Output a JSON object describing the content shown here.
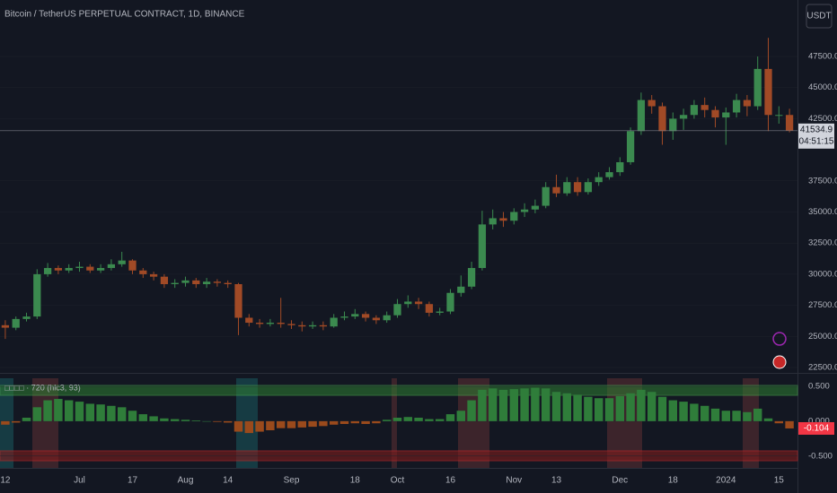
{
  "chart_data": [
    {
      "type": "candlestick",
      "title": "Bitcoin / TetherUS PERPETUAL CONTRACT, 1D, BINANCE",
      "currency": "USDT",
      "countdown": "04:51:15",
      "up_color": "#3b8a4f",
      "down_color": "#a14a26",
      "open": [
        25900,
        25700,
        26400,
        26600,
        30000,
        30500,
        30300,
        30500,
        30600,
        30300,
        30500,
        30800,
        31100,
        30300,
        30000,
        29800,
        29200,
        29300,
        29500,
        29200,
        29400,
        29300,
        29200,
        26500,
        26100,
        26000,
        26100,
        26000,
        25900,
        25800,
        25900,
        25800,
        26500,
        26600,
        26800,
        26500,
        26300,
        26700,
        27600,
        27800,
        27600,
        26900,
        27000,
        28500,
        29000,
        30500,
        34000,
        34500,
        34300,
        35000,
        35200,
        35500,
        37000,
        36500,
        37400,
        36600,
        37400,
        37800,
        38200,
        39000,
        41500,
        44000,
        43500,
        41500,
        42500,
        42800,
        43600,
        43200,
        42600,
        43000,
        44000,
        43500,
        46500,
        42800,
        42800
      ],
      "high": [
        26300,
        26600,
        26900,
        30400,
        30900,
        30700,
        30800,
        31000,
        30800,
        30800,
        31200,
        31800,
        31200,
        30500,
        30200,
        30000,
        29600,
        29800,
        29700,
        29700,
        29600,
        29500,
        29300,
        26800,
        26400,
        26400,
        28100,
        26300,
        26200,
        26200,
        26200,
        26800,
        27000,
        27200,
        27000,
        26700,
        27000,
        28000,
        28300,
        28100,
        27800,
        27300,
        28800,
        29900,
        31000,
        35100,
        35200,
        35000,
        35300,
        35700,
        36000,
        37400,
        38000,
        37800,
        37800,
        37700,
        38200,
        38600,
        39400,
        41800,
        44600,
        44400,
        43800,
        43000,
        43300,
        44000,
        44200,
        43500,
        43400,
        44500,
        44400,
        47500,
        49000,
        43500,
        43300
      ],
      "low": [
        24800,
        25500,
        26200,
        26400,
        29800,
        30000,
        30100,
        30200,
        30100,
        30100,
        30300,
        30600,
        30000,
        29700,
        29500,
        28900,
        28900,
        29000,
        28900,
        28900,
        29000,
        28900,
        25100,
        25800,
        25700,
        25800,
        25700,
        25600,
        25400,
        25600,
        25500,
        25700,
        26300,
        26400,
        26200,
        26000,
        26100,
        26500,
        27300,
        27200,
        26600,
        26700,
        26800,
        28200,
        28800,
        30300,
        33600,
        33800,
        34000,
        34600,
        34900,
        35300,
        36200,
        36300,
        36300,
        36400,
        37100,
        37600,
        37900,
        38800,
        41200,
        42900,
        40400,
        40800,
        41600,
        42500,
        42600,
        41800,
        40400,
        42600,
        42700,
        43200,
        41500,
        42100,
        41400
      ],
      "close": [
        25700,
        26400,
        26600,
        30000,
        30500,
        30300,
        30500,
        30600,
        30300,
        30500,
        30800,
        31100,
        30300,
        30000,
        29800,
        29200,
        29300,
        29500,
        29200,
        29400,
        29300,
        29200,
        26500,
        26100,
        26000,
        26100,
        26000,
        25900,
        25800,
        25900,
        25800,
        26500,
        26600,
        26800,
        26500,
        26300,
        26700,
        27600,
        27800,
        27600,
        26900,
        27000,
        28500,
        29000,
        30500,
        34000,
        34500,
        34300,
        35000,
        35200,
        35500,
        37000,
        36500,
        37400,
        36600,
        37400,
        37800,
        38200,
        39000,
        41500,
        44000,
        43500,
        41500,
        42500,
        42800,
        43600,
        43200,
        42600,
        43000,
        44000,
        43500,
        46500,
        42800,
        42800,
        41534.9
      ],
      "ylim": [
        22140,
        52040
      ],
      "yticks": [
        {
          "value": 22500,
          "label": "22500.0"
        },
        {
          "value": 25000,
          "label": "25000.0"
        },
        {
          "value": 27500,
          "label": "27500.0"
        },
        {
          "value": 30000,
          "label": "30000.0"
        },
        {
          "value": 32500,
          "label": "32500.0"
        },
        {
          "value": 35000,
          "label": "35000.0"
        },
        {
          "value": 37500,
          "label": "37500.0"
        },
        {
          "value": 42500,
          "label": "42500.0"
        },
        {
          "value": 45000,
          "label": "45000.0"
        },
        {
          "value": 47500,
          "label": "47500.0"
        }
      ]
    },
    {
      "type": "bar",
      "title": "□□□□ · 720 (hlc3, 93)",
      "up_color": "#2f7d3a",
      "down_color": "#9a4a1c",
      "categories": [
        "12",
        null,
        null,
        null,
        null,
        null,
        null,
        "Jul",
        null,
        null,
        null,
        null,
        "17",
        null,
        null,
        null,
        null,
        "Aug",
        null,
        null,
        null,
        "14",
        null,
        null,
        null,
        null,
        null,
        "Sep",
        null,
        null,
        null,
        null,
        null,
        "18",
        null,
        null,
        null,
        "Oct",
        null,
        null,
        null,
        null,
        "16",
        null,
        null,
        null,
        null,
        null,
        "Nov",
        null,
        null,
        null,
        "13",
        null,
        null,
        null,
        null,
        null,
        "Dec",
        null,
        null,
        null,
        null,
        "18",
        null,
        null,
        null,
        null,
        "2024",
        null,
        null,
        null,
        null,
        "15",
        null
      ],
      "values": [
        -0.05,
        -0.02,
        0.05,
        0.2,
        0.3,
        0.32,
        0.3,
        0.28,
        0.25,
        0.24,
        0.22,
        0.2,
        0.15,
        0.1,
        0.07,
        0.04,
        0.03,
        0.02,
        0.01,
        0.0,
        -0.01,
        -0.02,
        -0.15,
        -0.17,
        -0.15,
        -0.13,
        -0.1,
        -0.1,
        -0.09,
        -0.08,
        -0.07,
        -0.05,
        -0.04,
        -0.03,
        -0.04,
        -0.03,
        0.02,
        0.05,
        0.06,
        0.05,
        0.03,
        0.03,
        0.1,
        0.15,
        0.3,
        0.45,
        0.47,
        0.45,
        0.46,
        0.47,
        0.48,
        0.47,
        0.42,
        0.4,
        0.38,
        0.35,
        0.33,
        0.33,
        0.36,
        0.4,
        0.45,
        0.42,
        0.35,
        0.3,
        0.28,
        0.25,
        0.22,
        0.18,
        0.15,
        0.15,
        0.13,
        0.18,
        0.04,
        -0.03,
        -0.104
      ],
      "ylim": [
        -0.67,
        0.68
      ],
      "yticks": [
        {
          "value": 0.5,
          "label": "0.500"
        },
        {
          "value": 0,
          "label": "0.000"
        },
        {
          "value": -0.5,
          "label": "-0.500"
        }
      ]
    }
  ]
}
